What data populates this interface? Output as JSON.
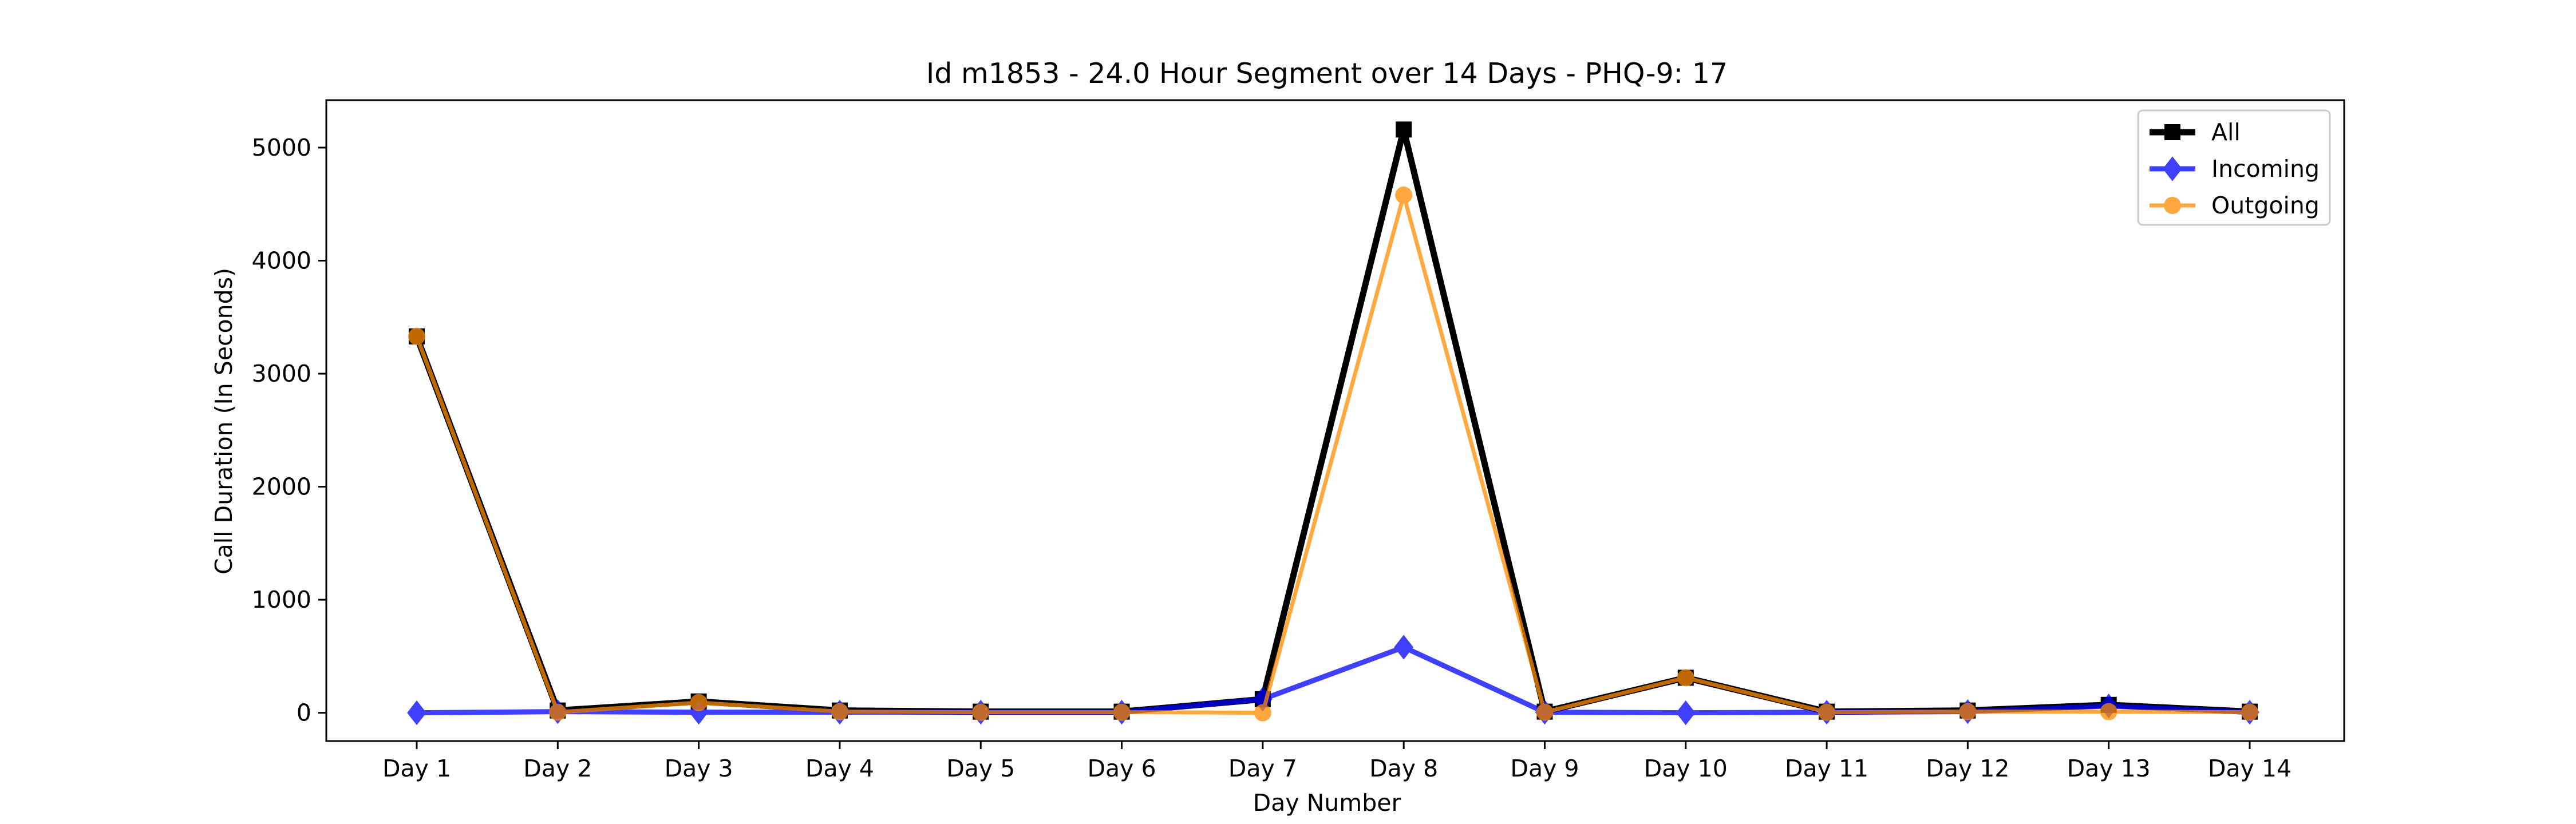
{
  "chart_data": {
    "type": "line",
    "title": "Id m1853 - 24.0 Hour Segment over 14 Days - PHQ-9: 17",
    "xlabel": "Day Number",
    "ylabel": "Call Duration (In Seconds)",
    "categories": [
      "Day 1",
      "Day 2",
      "Day 3",
      "Day 4",
      "Day 5",
      "Day 6",
      "Day 7",
      "Day 8",
      "Day 9",
      "Day 10",
      "Day 11",
      "Day 12",
      "Day 13",
      "Day 14"
    ],
    "ylim": [
      -250,
      5420
    ],
    "yticks": [
      0,
      1000,
      2000,
      3000,
      4000,
      5000
    ],
    "grid": false,
    "legend_position": "top-right",
    "series": [
      {
        "name": "All",
        "color": "#000000",
        "marker": "square",
        "values": [
          3330,
          20,
          100,
          20,
          10,
          10,
          120,
          5160,
          10,
          310,
          10,
          20,
          70,
          10
        ]
      },
      {
        "name": "Incoming",
        "color": "#0000ff",
        "marker": "diamond",
        "values": [
          0,
          10,
          5,
          5,
          5,
          5,
          120,
          580,
          5,
          0,
          5,
          10,
          60,
          5
        ]
      },
      {
        "name": "Outgoing",
        "color": "#ff8c00",
        "marker": "circle",
        "values": [
          3330,
          5,
          90,
          10,
          5,
          5,
          0,
          4580,
          5,
          310,
          5,
          10,
          10,
          5
        ]
      }
    ]
  }
}
